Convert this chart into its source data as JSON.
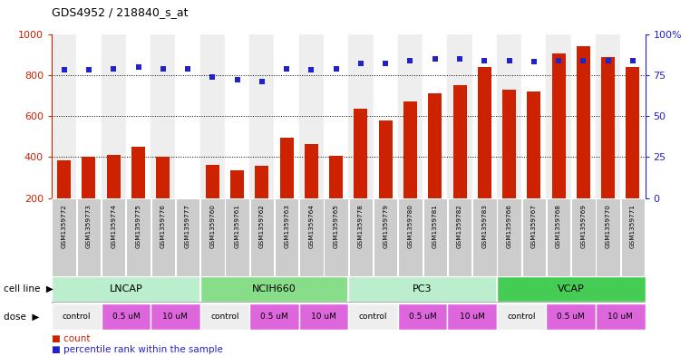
{
  "title": "GDS4952 / 218840_s_at",
  "samples": [
    "GSM1359772",
    "GSM1359773",
    "GSM1359774",
    "GSM1359775",
    "GSM1359776",
    "GSM1359777",
    "GSM1359760",
    "GSM1359761",
    "GSM1359762",
    "GSM1359763",
    "GSM1359764",
    "GSM1359765",
    "GSM1359778",
    "GSM1359779",
    "GSM1359780",
    "GSM1359781",
    "GSM1359782",
    "GSM1359783",
    "GSM1359766",
    "GSM1359767",
    "GSM1359768",
    "GSM1359769",
    "GSM1359770",
    "GSM1359771"
  ],
  "counts": [
    385,
    400,
    410,
    450,
    400,
    200,
    360,
    335,
    355,
    495,
    465,
    405,
    635,
    577,
    670,
    710,
    750,
    840,
    730,
    720,
    905,
    940,
    890,
    840
  ],
  "percentiles": [
    78,
    78,
    79,
    80,
    79,
    79,
    74,
    72,
    71,
    79,
    78,
    79,
    82,
    82,
    84,
    85,
    85,
    84,
    84,
    83,
    84,
    84,
    84,
    84
  ],
  "cell_lines": [
    {
      "name": "LNCAP",
      "start": 0,
      "end": 6
    },
    {
      "name": "NCIH660",
      "start": 6,
      "end": 12
    },
    {
      "name": "PC3",
      "start": 12,
      "end": 18
    },
    {
      "name": "VCAP",
      "start": 18,
      "end": 24
    }
  ],
  "cell_line_colors": [
    "#bbeecc",
    "#88dd88",
    "#bbeecc",
    "#44cc55"
  ],
  "dose_groups": [
    {
      "label": "control",
      "start": 0,
      "end": 2
    },
    {
      "label": "0.5 uM",
      "start": 2,
      "end": 4
    },
    {
      "label": "10 uM",
      "start": 4,
      "end": 6
    },
    {
      "label": "control",
      "start": 6,
      "end": 8
    },
    {
      "label": "0.5 uM",
      "start": 8,
      "end": 10
    },
    {
      "label": "10 uM",
      "start": 10,
      "end": 12
    },
    {
      "label": "control",
      "start": 12,
      "end": 14
    },
    {
      "label": "0.5 uM",
      "start": 14,
      "end": 16
    },
    {
      "label": "10 uM",
      "start": 16,
      "end": 18
    },
    {
      "label": "control",
      "start": 18,
      "end": 20
    },
    {
      "label": "0.5 uM",
      "start": 20,
      "end": 22
    },
    {
      "label": "10 uM",
      "start": 22,
      "end": 24
    }
  ],
  "dose_color_control": "#eeeeee",
  "dose_color_dose": "#dd66dd",
  "bar_color": "#cc2200",
  "dot_color": "#2222cc",
  "ylim_left": [
    200,
    1000
  ],
  "ylim_right": [
    0,
    100
  ],
  "yticks_left": [
    200,
    400,
    600,
    800,
    1000
  ],
  "yticks_right": [
    0,
    25,
    50,
    75,
    100
  ],
  "grid_values": [
    400,
    600,
    800
  ],
  "bg": "#ffffff",
  "label_box_color": "#cccccc",
  "label_box_border": "#aaaaaa"
}
